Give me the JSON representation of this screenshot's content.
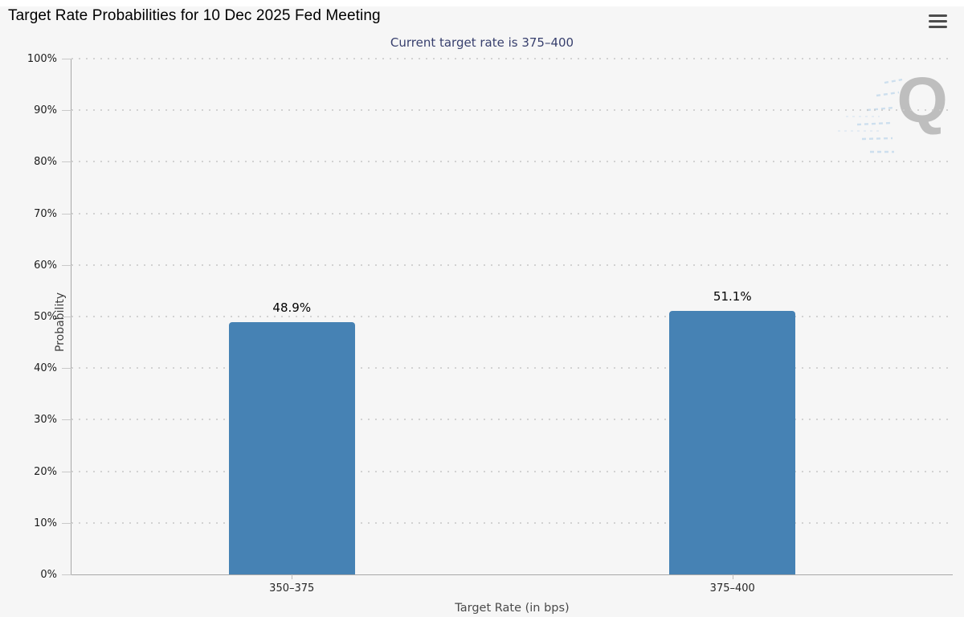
{
  "header": {
    "title": "Target Rate Probabilities for 10 Dec 2025 Fed Meeting",
    "menu_icon": "hamburger-icon"
  },
  "watermark_letter": "Q",
  "chart_data": {
    "type": "bar",
    "title": "Target Rate Probabilities for 10 Dec 2025 Fed Meeting",
    "subtitle": "Current target rate is 375–400",
    "categories": [
      "350–375",
      "375–400"
    ],
    "values": [
      48.9,
      51.1
    ],
    "value_labels": [
      "48.9%",
      "51.1%"
    ],
    "xlabel": "Target Rate (in bps)",
    "ylabel": "Probability",
    "ylim": [
      0,
      100
    ],
    "ytick_step": 10,
    "ytick_labels": [
      "0%",
      "10%",
      "20%",
      "30%",
      "40%",
      "50%",
      "60%",
      "70%",
      "80%",
      "90%",
      "100%"
    ],
    "grid": "dotted horizontal gridlines at 10% intervals",
    "legend": "none",
    "bar_color": "#4682b4"
  },
  "colors": {
    "background": "#f6f6f6",
    "bar": "#4682b4",
    "subtitle_text": "#38406e",
    "axis_line": "#a8a8a8",
    "gridline": "#cccccc",
    "menu_icon": "#4d4d4d",
    "watermark": "#b5b5b5"
  }
}
